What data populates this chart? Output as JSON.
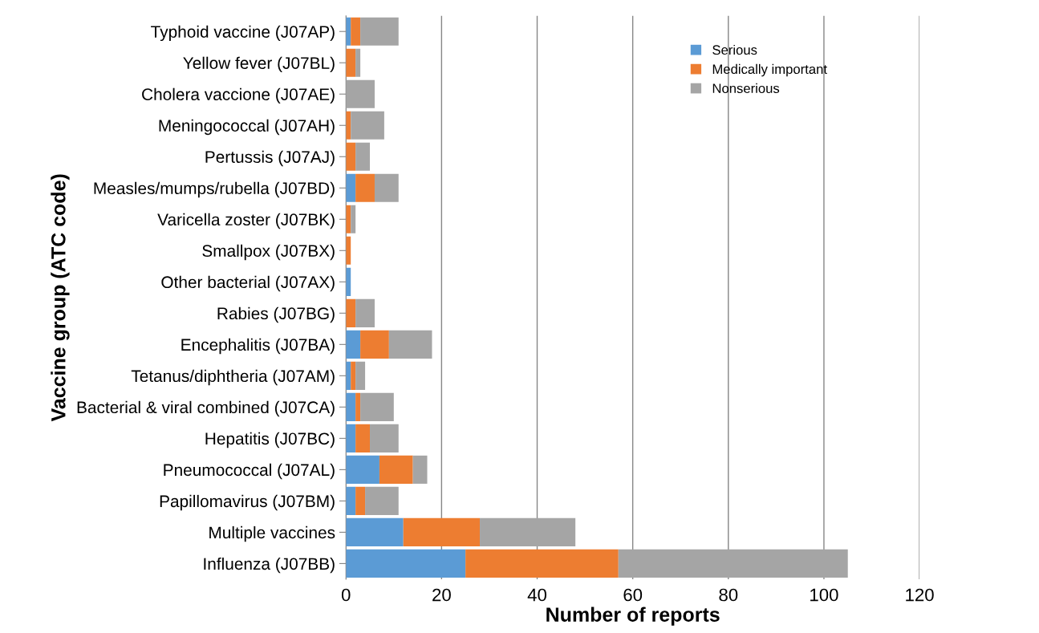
{
  "chart_data": {
    "type": "bar",
    "orientation": "horizontal",
    "stacked": true,
    "xlabel": "Number of reports",
    "ylabel": "Vaccine group (ATC code)",
    "categories": [
      "Typhoid vaccine (J07AP)",
      "Yellow fever (J07BL)",
      "Cholera vaccione (J07AE)",
      "Meningococcal (J07AH)",
      "Pertussis (J07AJ)",
      "Measles/mumps/rubella (J07BD)",
      "Varicella zoster (J07BK)",
      "Smallpox (J07BX)",
      "Other bacterial (J07AX)",
      "Rabies (J07BG)",
      "Encephalitis (J07BA)",
      "Tetanus/diphtheria (J07AM)",
      "Bacterial & viral combined (J07CA)",
      "Hepatitis (J07BC)",
      "Pneumococcal (J07AL)",
      "Papillomavirus (J07BM)",
      "Multiple vaccines",
      "Influenza (J07BB)"
    ],
    "series": [
      {
        "name": "Serious",
        "color": "#5b9bd5",
        "values": [
          1,
          0,
          0,
          0,
          0,
          2,
          0,
          0,
          1,
          0,
          3,
          1,
          2,
          2,
          7,
          2,
          12,
          25
        ]
      },
      {
        "name": "Medically important",
        "color": "#ed7d31",
        "values": [
          2,
          2,
          0,
          1,
          2,
          4,
          1,
          1,
          0,
          2,
          6,
          1,
          1,
          3,
          7,
          2,
          16,
          32
        ]
      },
      {
        "name": "Nonserious",
        "color": "#a5a5a5",
        "values": [
          8,
          1,
          6,
          7,
          3,
          5,
          1,
          0,
          0,
          4,
          9,
          2,
          7,
          6,
          3,
          7,
          20,
          48
        ]
      }
    ],
    "xlim": [
      0,
      120
    ],
    "xticks": [
      0,
      20,
      40,
      60,
      80,
      100,
      120
    ],
    "grid": "x",
    "legend": "top right"
  }
}
